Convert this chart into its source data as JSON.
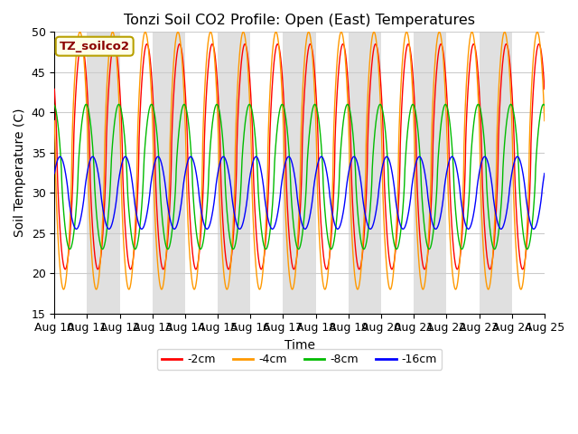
{
  "title": "Tonzi Soil CO2 Profile: Open (East) Temperatures",
  "xlabel": "Time",
  "ylabel": "Soil Temperature (C)",
  "ylim": [
    15,
    50
  ],
  "legend_title": "TZ_soilco2",
  "series": [
    {
      "label": "-2cm",
      "color": "#ff0000",
      "amplitude": 14.0,
      "mean": 34.5,
      "phase_shift": 0.58,
      "skew": 0.3
    },
    {
      "label": "-4cm",
      "color": "#ff9900",
      "amplitude": 16.0,
      "mean": 34.0,
      "phase_shift": 0.53,
      "skew": 0.3
    },
    {
      "label": "-8cm",
      "color": "#00bb00",
      "amplitude": 9.0,
      "mean": 32.0,
      "phase_shift": 0.72,
      "skew": 0.25
    },
    {
      "label": "-16cm",
      "color": "#0000ff",
      "amplitude": 4.5,
      "mean": 30.0,
      "phase_shift": 0.92,
      "skew": 0.15
    }
  ],
  "n_points": 3600,
  "num_days": 15,
  "xtick_labels": [
    "Aug 10",
    "Aug 11",
    "Aug 12",
    "Aug 13",
    "Aug 14",
    "Aug 15",
    "Aug 16",
    "Aug 17",
    "Aug 18",
    "Aug 19",
    "Aug 20",
    "Aug 21",
    "Aug 22",
    "Aug 23",
    "Aug 24",
    "Aug 25"
  ],
  "background_color": "#ffffff",
  "grid_color": "#cccccc",
  "band_color": "#e0e0e0",
  "legend_bg": "#ffffe8",
  "legend_border": "#b8a000",
  "legend_title_color": "#8b0000"
}
